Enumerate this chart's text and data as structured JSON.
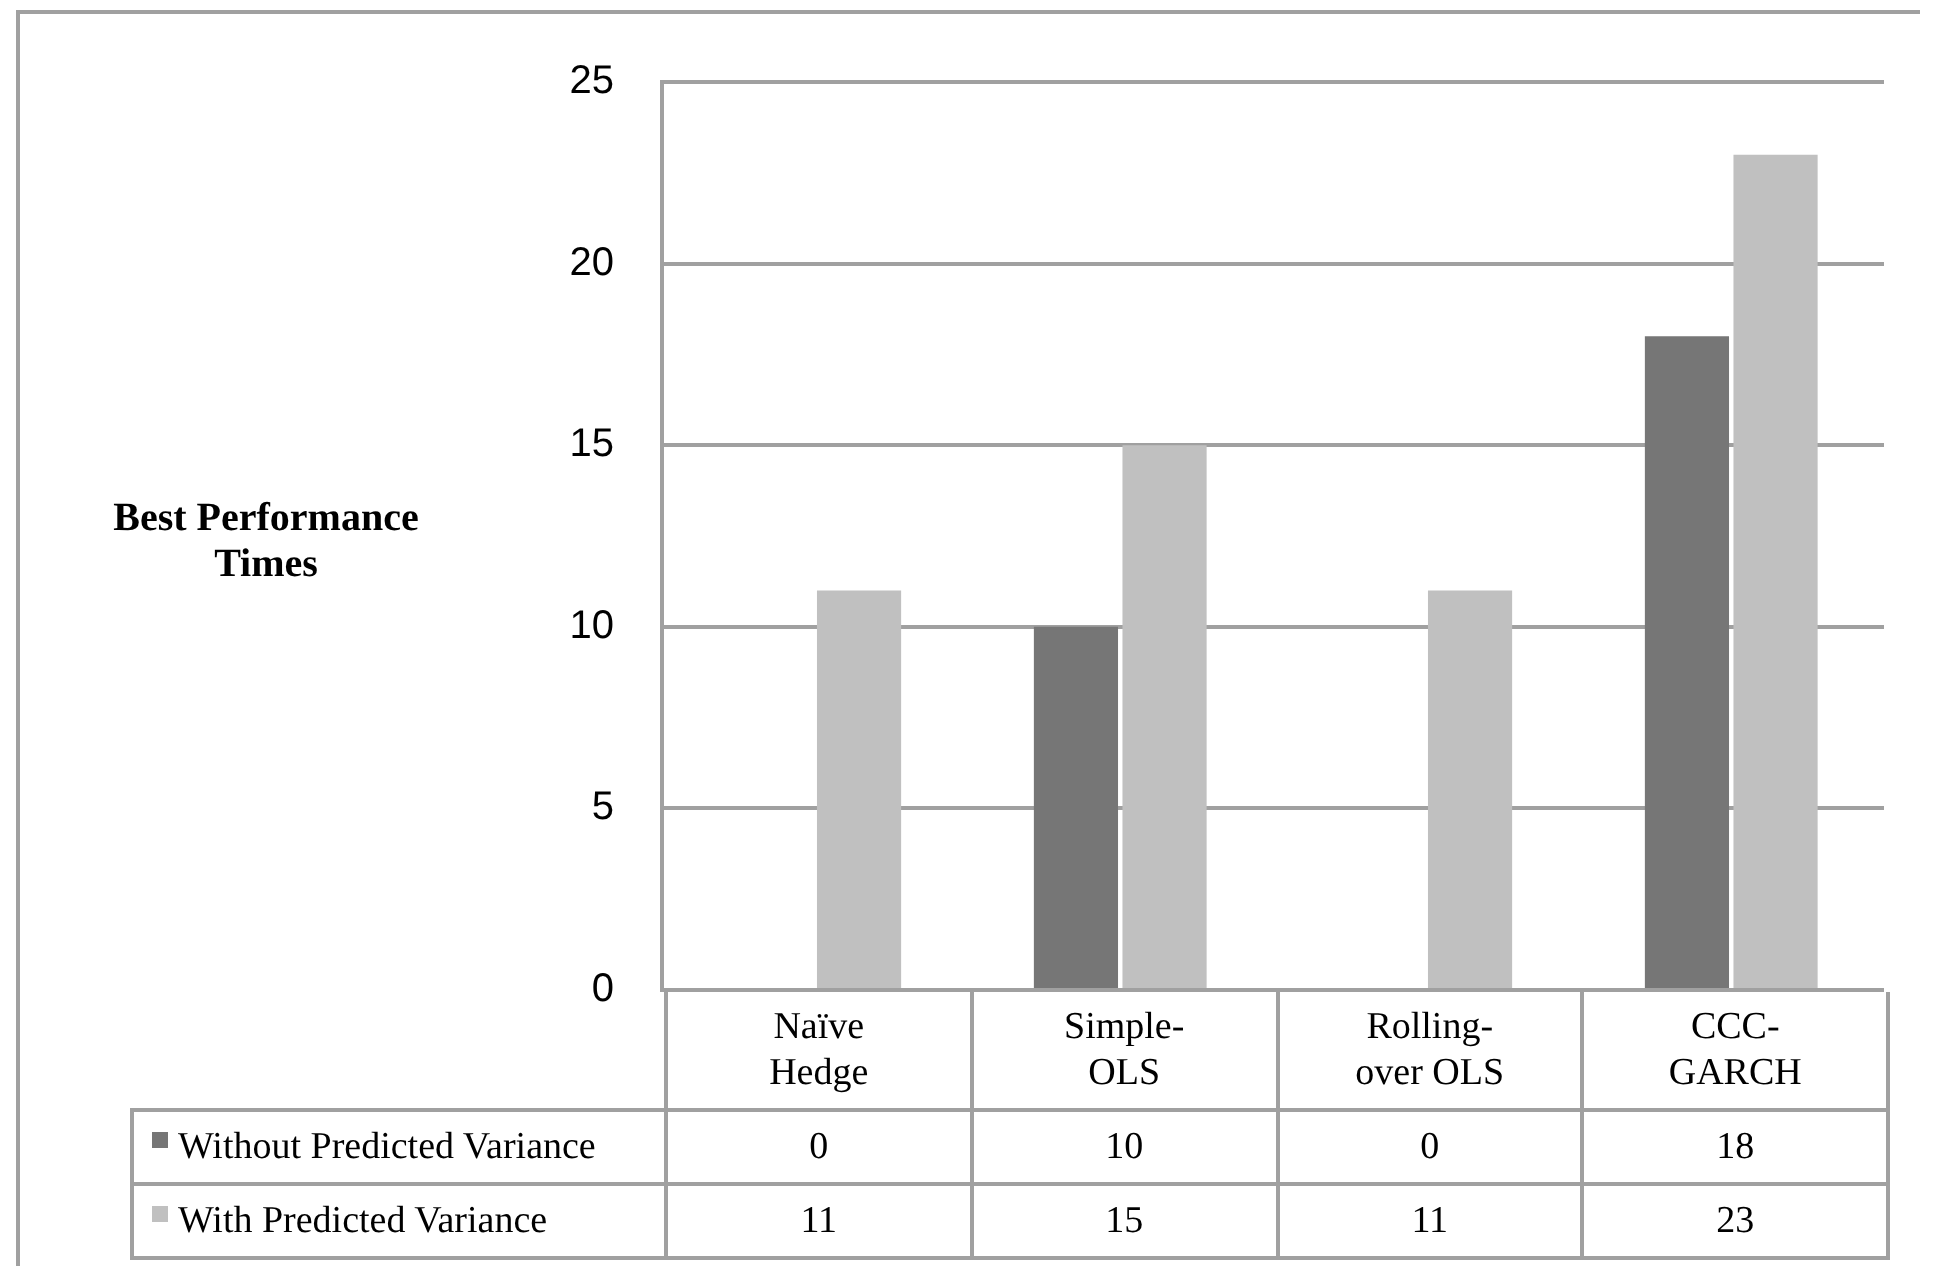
{
  "chart_data": {
    "type": "bar",
    "categories": [
      "Naïve Hedge",
      "Simple-OLS",
      "Rolling-over OLS",
      "CCC-GARCH"
    ],
    "series": [
      {
        "name": "Without Predicted Variance",
        "color": "#767676",
        "values": [
          0,
          10,
          0,
          18
        ]
      },
      {
        "name": "With Predicted Variance",
        "color": "#c0c0c0",
        "values": [
          11,
          15,
          11,
          23
        ]
      }
    ],
    "ylabel": "Best Performance Times",
    "ylim": [
      0,
      25
    ],
    "yticks": [
      0,
      5,
      10,
      15,
      20,
      25
    ],
    "grid": "y",
    "legend": "bottom",
    "data_labels": true
  }
}
